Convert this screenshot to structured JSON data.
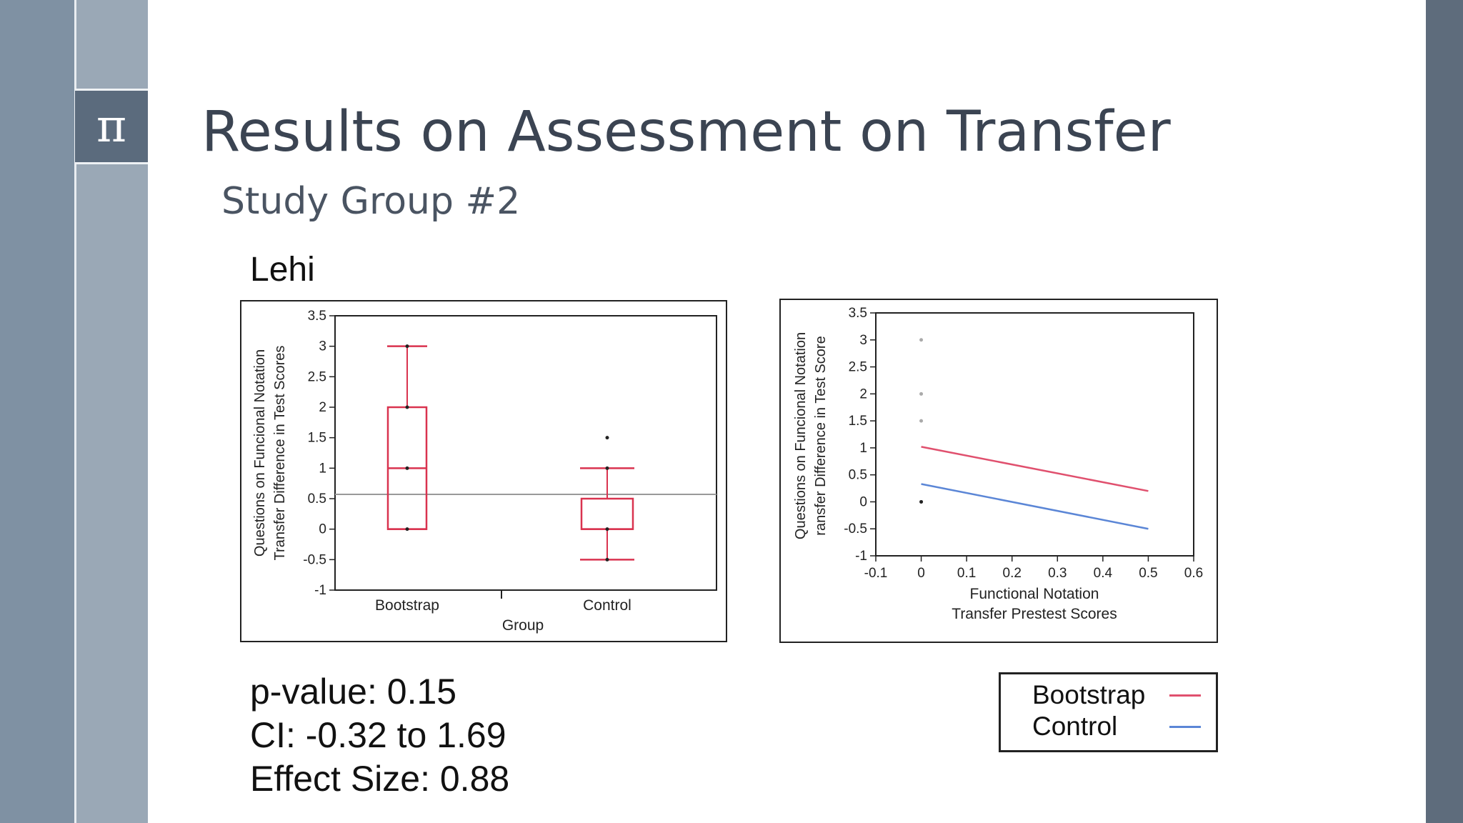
{
  "slide": {
    "logo_glyph": "π",
    "title": "Results on Assessment on Transfer",
    "subtitle": "Study Group #2",
    "site_label": "Lehi"
  },
  "stats": {
    "p_value": "p-value: 0.15",
    "ci": "CI: -0.32 to 1.69",
    "effect_size": "Effect Size: 0.88"
  },
  "legend": {
    "items": [
      {
        "label": "Bootstrap",
        "color": "#e0506e"
      },
      {
        "label": "Control",
        "color": "#5b86d6"
      }
    ]
  },
  "chart_data": [
    {
      "type": "box",
      "xlabel": "Group",
      "ylabel": [
        "Questions on Funcional Notation",
        "Transfer Difference in Test Scores"
      ],
      "ylim": [
        -1,
        3.5
      ],
      "yticks": [
        -1,
        -0.5,
        0,
        0.5,
        1,
        1.5,
        2,
        2.5,
        3,
        3.5
      ],
      "ytick_labels": [
        "-1",
        "-0.5",
        "0",
        "0.5",
        "1",
        "1.5",
        "2",
        "2.5",
        "3",
        "3.5"
      ],
      "categories": [
        "Bootstrap",
        "Control"
      ],
      "boxes": [
        {
          "category": "Bootstrap",
          "min": 0,
          "q1": 0,
          "median": 1,
          "q3": 2,
          "max": 3,
          "points": [
            0,
            1,
            2,
            3
          ]
        },
        {
          "category": "Control",
          "min": -0.5,
          "q1": 0,
          "median": 0,
          "q3": 0.5,
          "max": 1,
          "points": [
            -0.5,
            0,
            1
          ],
          "outliers": [
            1.5
          ]
        }
      ],
      "reference_line": 0.57,
      "box_color": "#d9334f",
      "ref_color": "#999999"
    },
    {
      "type": "line",
      "xlabel": [
        "Functional Notation",
        "Transfer Prestest Scores"
      ],
      "ylabel": [
        "Questions on Funcional Notation",
        "ransfer Difference in Test Score"
      ],
      "xlim": [
        -0.1,
        0.6
      ],
      "ylim": [
        -1,
        3.5
      ],
      "xticks": [
        -0.1,
        0,
        0.1,
        0.2,
        0.3,
        0.4,
        0.5,
        0.6
      ],
      "xtick_labels": [
        "-0.1",
        "0",
        "0.1",
        "0.2",
        "0.3",
        "0.4",
        "0.5",
        "0.6"
      ],
      "yticks": [
        -1,
        -0.5,
        0,
        0.5,
        1,
        1.5,
        2,
        2.5,
        3,
        3.5
      ],
      "ytick_labels": [
        "-1",
        "-0.5",
        "0",
        "0.5",
        "1",
        "1.5",
        "2",
        "2.5",
        "3",
        "3.5"
      ],
      "series": [
        {
          "name": "Bootstrap",
          "color": "#e0506e",
          "x": [
            0,
            0.5
          ],
          "y": [
            1.02,
            0.2
          ]
        },
        {
          "name": "Control",
          "color": "#5b86d6",
          "x": [
            0,
            0.5
          ],
          "y": [
            0.33,
            -0.5
          ]
        }
      ],
      "points": [
        {
          "x": 0,
          "y": 3,
          "color": "#aaaaaa"
        },
        {
          "x": 0,
          "y": 2,
          "color": "#aaaaaa"
        },
        {
          "x": 0,
          "y": 1.5,
          "color": "#aaaaaa"
        },
        {
          "x": 0,
          "y": 0,
          "color": "#222222"
        }
      ]
    }
  ]
}
